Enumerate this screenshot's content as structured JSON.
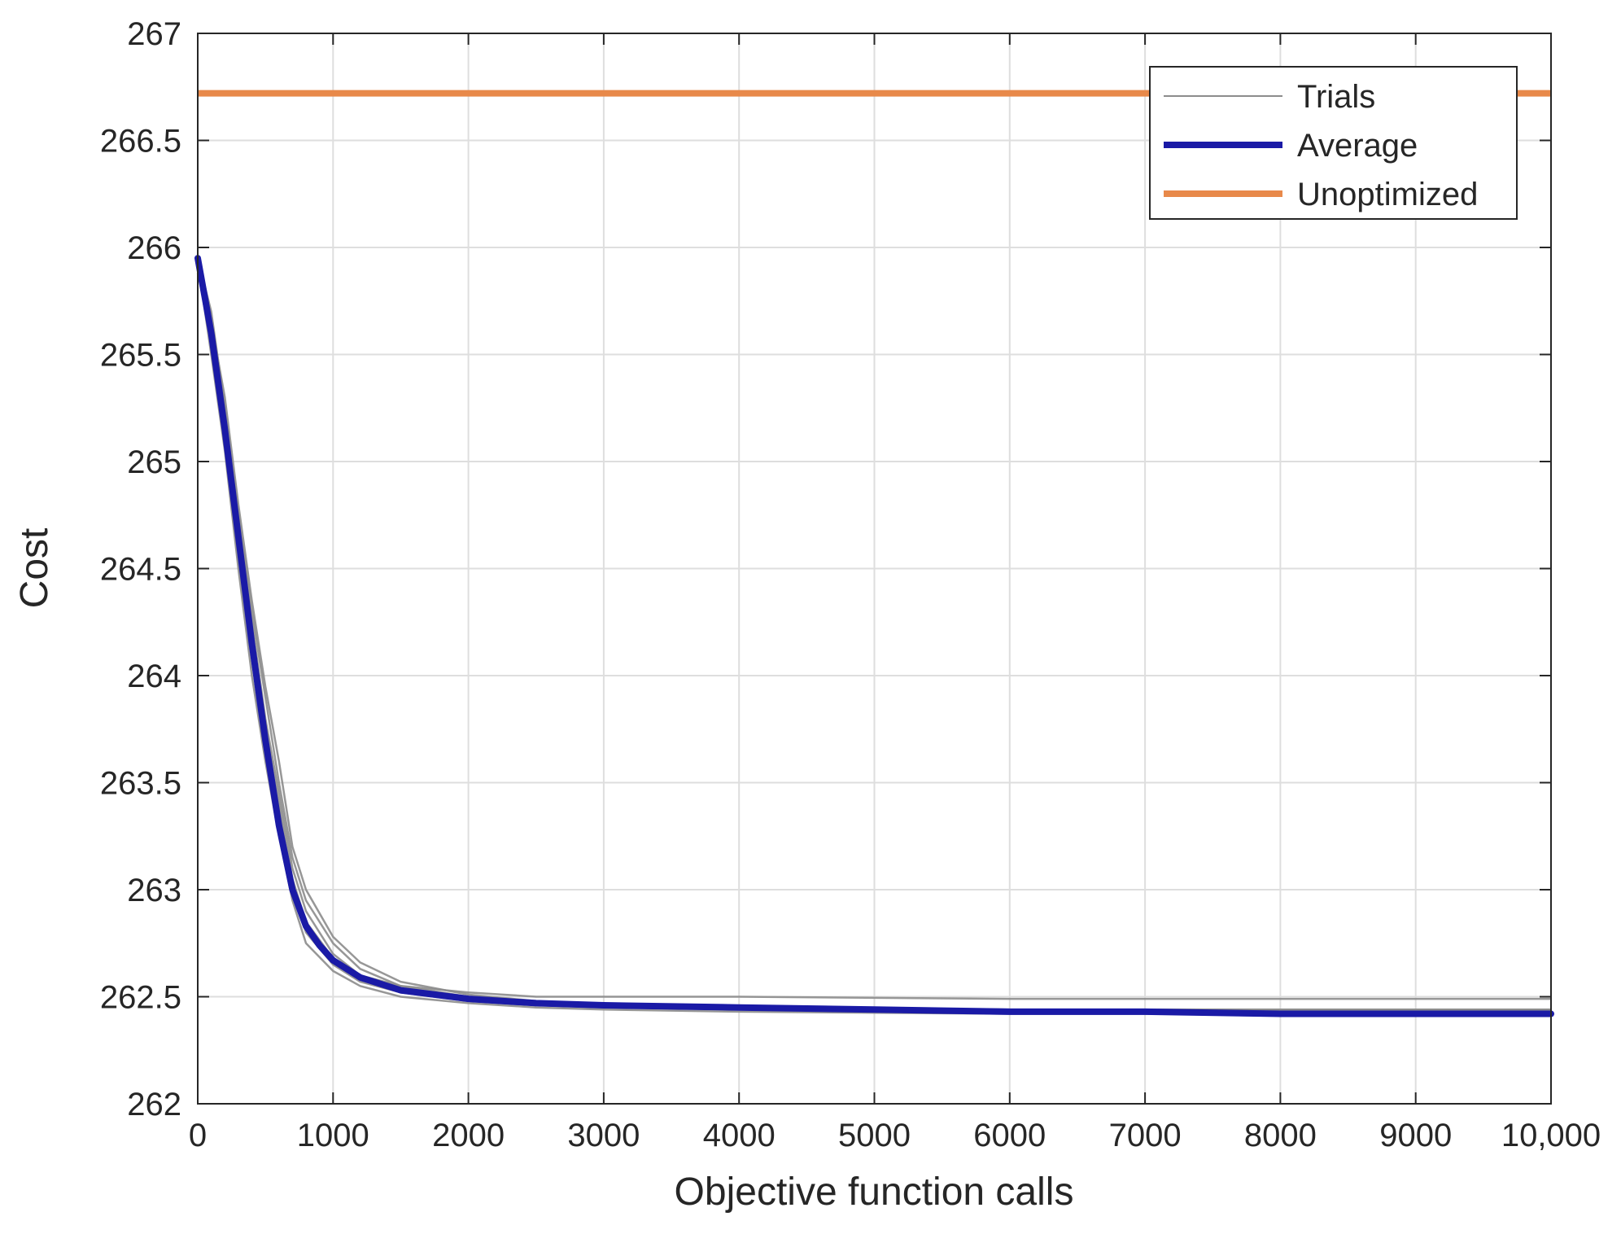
{
  "chart_data": {
    "type": "line",
    "title": "",
    "xlabel": "Objective function calls",
    "ylabel": "Cost",
    "xlim": [
      0,
      10000
    ],
    "ylim": [
      262,
      267
    ],
    "grid": true,
    "legend_position": "top-right",
    "x_ticks": [
      0,
      1000,
      2000,
      3000,
      4000,
      5000,
      6000,
      7000,
      8000,
      9000,
      10000
    ],
    "x_tick_labels": [
      "0",
      "1000",
      "2000",
      "3000",
      "4000",
      "5000",
      "6000",
      "7000",
      "8000",
      "9000",
      "10,000"
    ],
    "y_ticks": [
      262,
      262.5,
      263,
      263.5,
      264,
      264.5,
      265,
      265.5,
      266,
      266.5,
      267
    ],
    "y_tick_labels": [
      "262",
      "262.5",
      "263",
      "263.5",
      "264",
      "264.5",
      "265",
      "265.5",
      "266",
      "266.5",
      "267"
    ],
    "legend": [
      "Trials",
      "Average",
      "Unoptimized"
    ],
    "colors": {
      "trials": "#8c8c8c",
      "average": "#1a1aa6",
      "unoptimized": "#e8894a"
    },
    "series": [
      {
        "name": "Trials",
        "trials": [
          [
            [
              0,
              265.95
            ],
            [
              100,
              265.7
            ],
            [
              200,
              265.25
            ],
            [
              300,
              264.7
            ],
            [
              400,
              264.25
            ],
            [
              500,
              263.8
            ],
            [
              600,
              263.45
            ],
            [
              700,
              263.1
            ],
            [
              800,
              262.9
            ],
            [
              1000,
              262.7
            ],
            [
              1200,
              262.6
            ],
            [
              1500,
              262.55
            ],
            [
              2000,
              262.52
            ],
            [
              2500,
              262.5
            ],
            [
              3000,
              262.5
            ],
            [
              4000,
              262.5
            ],
            [
              6000,
              262.49
            ],
            [
              8000,
              262.49
            ],
            [
              10000,
              262.49
            ]
          ],
          [
            [
              0,
              265.9
            ],
            [
              100,
              265.55
            ],
            [
              200,
              265.1
            ],
            [
              300,
              264.55
            ],
            [
              400,
              264.1
            ],
            [
              500,
              263.7
            ],
            [
              600,
              263.3
            ],
            [
              700,
              263.0
            ],
            [
              800,
              262.8
            ],
            [
              1000,
              262.65
            ],
            [
              1200,
              262.57
            ],
            [
              1500,
              262.52
            ],
            [
              2000,
              262.49
            ],
            [
              2500,
              262.47
            ],
            [
              3000,
              262.46
            ],
            [
              4000,
              262.45
            ],
            [
              6000,
              262.44
            ],
            [
              8000,
              262.44
            ],
            [
              10000,
              262.44
            ]
          ],
          [
            [
              0,
              265.92
            ],
            [
              100,
              265.62
            ],
            [
              200,
              265.15
            ],
            [
              300,
              264.6
            ],
            [
              400,
              264.15
            ],
            [
              500,
              263.75
            ],
            [
              600,
              263.4
            ],
            [
              700,
              263.05
            ],
            [
              800,
              262.85
            ],
            [
              1000,
              262.68
            ],
            [
              1200,
              262.58
            ],
            [
              1500,
              262.52
            ],
            [
              2000,
              262.48
            ],
            [
              2500,
              262.46
            ],
            [
              3000,
              262.45
            ],
            [
              4000,
              262.44
            ],
            [
              6000,
              262.43
            ],
            [
              8000,
              262.43
            ],
            [
              10000,
              262.43
            ]
          ],
          [
            [
              0,
              265.88
            ],
            [
              100,
              265.6
            ],
            [
              200,
              265.2
            ],
            [
              300,
              264.75
            ],
            [
              400,
              264.3
            ],
            [
              500,
              263.9
            ],
            [
              600,
              263.5
            ],
            [
              700,
              263.15
            ],
            [
              800,
              262.95
            ],
            [
              1000,
              262.75
            ],
            [
              1200,
              262.63
            ],
            [
              1500,
              262.55
            ],
            [
              2000,
              262.5
            ],
            [
              2500,
              262.47
            ],
            [
              3000,
              262.46
            ],
            [
              4000,
              262.45
            ],
            [
              6000,
              262.44
            ],
            [
              8000,
              262.43
            ],
            [
              10000,
              262.43
            ]
          ],
          [
            [
              0,
              265.93
            ],
            [
              100,
              265.5
            ],
            [
              200,
              265.05
            ],
            [
              300,
              264.5
            ],
            [
              400,
              264.0
            ],
            [
              500,
              263.6
            ],
            [
              600,
              263.25
            ],
            [
              700,
              262.95
            ],
            [
              800,
              262.75
            ],
            [
              1000,
              262.62
            ],
            [
              1200,
              262.55
            ],
            [
              1500,
              262.5
            ],
            [
              2000,
              262.47
            ],
            [
              2500,
              262.45
            ],
            [
              3000,
              262.44
            ],
            [
              4000,
              262.43
            ],
            [
              6000,
              262.42
            ],
            [
              8000,
              262.42
            ],
            [
              10000,
              262.42
            ]
          ],
          [
            [
              0,
              265.91
            ],
            [
              100,
              265.65
            ],
            [
              200,
              265.3
            ],
            [
              300,
              264.8
            ],
            [
              400,
              264.35
            ],
            [
              500,
              263.95
            ],
            [
              600,
              263.6
            ],
            [
              700,
              263.2
            ],
            [
              800,
              263.0
            ],
            [
              1000,
              262.78
            ],
            [
              1200,
              262.66
            ],
            [
              1500,
              262.57
            ],
            [
              2000,
              262.51
            ],
            [
              2500,
              262.48
            ],
            [
              3000,
              262.46
            ],
            [
              4000,
              262.45
            ],
            [
              6000,
              262.44
            ],
            [
              8000,
              262.44
            ],
            [
              10000,
              262.44
            ]
          ]
        ]
      },
      {
        "name": "Average",
        "x": [
          0,
          100,
          200,
          300,
          400,
          500,
          600,
          700,
          800,
          900,
          1000,
          1200,
          1500,
          2000,
          2500,
          3000,
          4000,
          5000,
          6000,
          7000,
          8000,
          9000,
          10000
        ],
        "values": [
          265.95,
          265.6,
          265.15,
          264.65,
          264.15,
          263.7,
          263.3,
          263.0,
          262.83,
          262.74,
          262.67,
          262.59,
          262.53,
          262.49,
          262.47,
          262.46,
          262.45,
          262.44,
          262.43,
          262.43,
          262.42,
          262.42,
          262.42
        ]
      },
      {
        "name": "Unoptimized",
        "x": [
          0,
          10000
        ],
        "values": [
          266.72,
          266.72
        ]
      }
    ]
  }
}
